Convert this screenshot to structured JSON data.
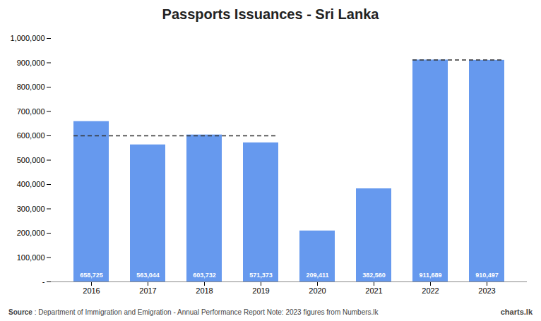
{
  "chart_data": {
    "type": "bar",
    "title": "Passports Issuances - Sri Lanka",
    "categories": [
      "2016",
      "2017",
      "2018",
      "2019",
      "2020",
      "2021",
      "2022",
      "2023"
    ],
    "values": [
      658725,
      563044,
      603732,
      571373,
      209411,
      382560,
      911689,
      910497
    ],
    "value_labels": [
      "658,725",
      "563,044",
      "603,732",
      "571,373",
      "209,411",
      "382,560",
      "911,689",
      "910,497"
    ],
    "data_labels": true,
    "color": "#6699ee",
    "ylim": [
      0,
      1000000
    ],
    "yticks": [
      {
        "value": 0,
        "label": "-"
      },
      {
        "value": 100000,
        "label": "100,000"
      },
      {
        "value": 200000,
        "label": "200,000"
      },
      {
        "value": 300000,
        "label": "300,000"
      },
      {
        "value": 400000,
        "label": "400,000"
      },
      {
        "value": 500000,
        "label": "500,000"
      },
      {
        "value": 600000,
        "label": "600,000"
      },
      {
        "value": 700000,
        "label": "700,000"
      },
      {
        "value": 800000,
        "label": "800,000"
      },
      {
        "value": 900000,
        "label": "900,000"
      },
      {
        "value": 1000000,
        "label": "1,000,000"
      }
    ],
    "grid": false,
    "reference_lines": [
      {
        "value": 600000,
        "from": "2016",
        "to": "2019",
        "line_style": "dashed"
      },
      {
        "value": 911689,
        "from": "2022",
        "to": "2023",
        "line_style": "dashed"
      }
    ],
    "source_label": "Source",
    "source_text": " : Department of Immigration and Emigration - Annual Performance Report Note: 2023 figures from Numbers.lk",
    "credit": "charts.lk"
  }
}
